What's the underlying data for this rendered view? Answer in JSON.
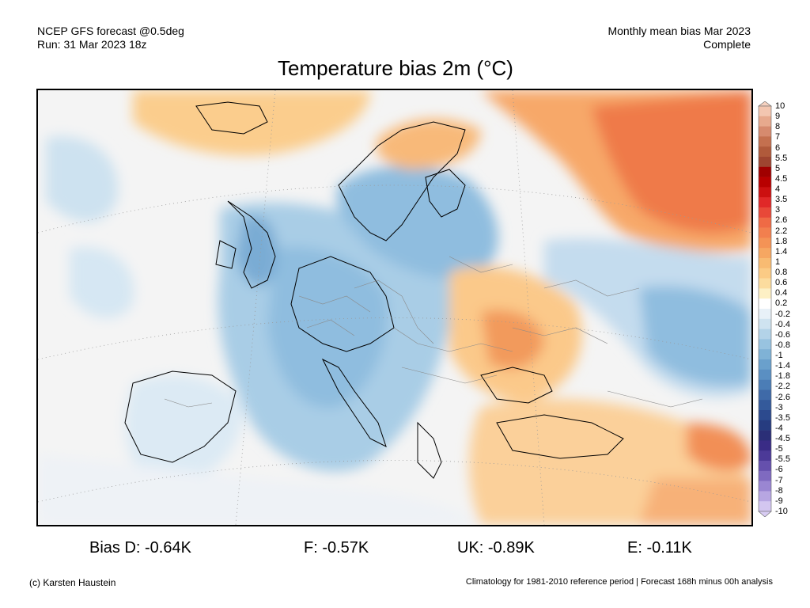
{
  "header": {
    "model": "NCEP GFS forecast @0.5deg",
    "run": "Run: 31 Mar 2023 18z",
    "period": "Monthly mean bias Mar 2023",
    "status": "Complete"
  },
  "title": "Temperature bias 2m (°C)",
  "colorbar": {
    "labels": [
      "10",
      "9",
      "8",
      "7",
      "6",
      "5.5",
      "5",
      "4.5",
      "4",
      "3.5",
      "3",
      "2.6",
      "2.2",
      "1.8",
      "1.4",
      "1",
      "0.8",
      "0.6",
      "0.4",
      "0.2",
      "-0.2",
      "-0.4",
      "-0.6",
      "-0.8",
      "-1",
      "-1.4",
      "-1.8",
      "-2.2",
      "-2.6",
      "-3",
      "-3.5",
      "-4",
      "-4.5",
      "-5",
      "-5.5",
      "-6",
      "-7",
      "-8",
      "-9",
      "-10"
    ],
    "colors": [
      "#f3c6b0",
      "#e7a98d",
      "#d68a6e",
      "#c4704f",
      "#b05a3b",
      "#9e4530",
      "#a00000",
      "#b80000",
      "#cc1010",
      "#e02828",
      "#e84838",
      "#ef6a45",
      "#f27f4e",
      "#f49356",
      "#f6a762",
      "#f8bb72",
      "#fbcb85",
      "#fcdc9e",
      "#fdf0c5",
      "#ffffff",
      "#e8f1f8",
      "#cfe3f0",
      "#b3d3e8",
      "#98c3e0",
      "#7fb2d6",
      "#6aa0cc",
      "#5a8fc2",
      "#4b7db6",
      "#3f6aa8",
      "#345a9b",
      "#2c4a8e",
      "#263c80",
      "#2b2f77",
      "#3a2c86",
      "#4c3a98",
      "#6550ad",
      "#7f6ac0",
      "#9a86d2",
      "#b7a6e2",
      "#d3c6f0"
    ],
    "color_above": "#f6d2c0",
    "color_below": "#d8ccf3"
  },
  "stats": {
    "de": "Bias D: -0.64K",
    "fr": "F: -0.57K",
    "uk": "UK: -0.89K",
    "eu": "E: -0.11K"
  },
  "footer": {
    "credit": "(c) Karsten Haustein",
    "note": "Climatology for 1981-2010 reference period | Forecast 168h minus 00h analysis"
  }
}
